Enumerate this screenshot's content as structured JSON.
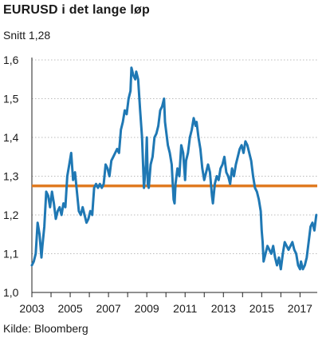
{
  "chart_data": {
    "type": "line",
    "title": "EURUSD i det lange løp",
    "subtitle": "Snitt 1,28",
    "source": "Kilde: Bloomberg",
    "xlabel": "",
    "ylabel": "",
    "xlim": [
      2003.0,
      2017.9
    ],
    "ylim": [
      1.0,
      1.6
    ],
    "grid": "horizontal",
    "legend": "none",
    "x_ticks": [
      "2003",
      "2005",
      "2007",
      "2009",
      "2011",
      "2013",
      "2015",
      "2017"
    ],
    "y_ticks": [
      "1,6",
      "1,5",
      "1,4",
      "1,3",
      "1,2",
      "1,1",
      "1,0"
    ],
    "colors": {
      "series": "#1f78b4",
      "average": "#e07b22",
      "grid": "#bbbbbb",
      "axis": "#222222"
    },
    "average": {
      "value": 1.275,
      "label": "Snitt 1,28"
    },
    "series": [
      {
        "x": [
          2003.0,
          2003.1,
          2003.2,
          2003.3,
          2003.4,
          2003.5,
          2003.55,
          2003.65,
          2003.75,
          2003.85,
          2003.95,
          2004.05,
          2004.15,
          2004.25,
          2004.35,
          2004.45,
          2004.55,
          2004.65,
          2004.75,
          2004.85,
          2004.95,
          2005.05,
          2005.15,
          2005.25,
          2005.35,
          2005.45,
          2005.55,
          2005.65,
          2005.75,
          2005.85,
          2005.95,
          2006.05,
          2006.15,
          2006.25,
          2006.35,
          2006.45,
          2006.55,
          2006.65,
          2006.75,
          2006.85,
          2006.95,
          2007.05,
          2007.15,
          2007.25,
          2007.35,
          2007.45,
          2007.55,
          2007.65,
          2007.75,
          2007.85,
          2007.95,
          2008.05,
          2008.15,
          2008.2,
          2008.3,
          2008.4,
          2008.45,
          2008.55,
          2008.65,
          2008.75,
          2008.85,
          2008.95,
          2009.0,
          2009.05,
          2009.1,
          2009.15,
          2009.2,
          2009.3,
          2009.4,
          2009.5,
          2009.6,
          2009.7,
          2009.8,
          2009.9,
          2009.95,
          2010.0,
          2010.1,
          2010.2,
          2010.3,
          2010.4,
          2010.45,
          2010.5,
          2010.6,
          2010.7,
          2010.8,
          2010.9,
          2011.0,
          2011.05,
          2011.15,
          2011.25,
          2011.35,
          2011.45,
          2011.55,
          2011.6,
          2011.7,
          2011.8,
          2011.9,
          2012.0,
          2012.1,
          2012.2,
          2012.3,
          2012.4,
          2012.45,
          2012.55,
          2012.65,
          2012.75,
          2012.85,
          2012.95,
          2013.05,
          2013.15,
          2013.25,
          2013.35,
          2013.45,
          2013.55,
          2013.65,
          2013.75,
          2013.85,
          2013.95,
          2014.05,
          2014.15,
          2014.25,
          2014.35,
          2014.45,
          2014.55,
          2014.65,
          2014.75,
          2014.85,
          2014.95,
          2015.0,
          2015.05,
          2015.1,
          2015.2,
          2015.3,
          2015.4,
          2015.5,
          2015.6,
          2015.7,
          2015.8,
          2015.9,
          2016.0,
          2016.1,
          2016.2,
          2016.3,
          2016.4,
          2016.5,
          2016.6,
          2016.7,
          2016.8,
          2016.9,
          2017.0,
          2017.05,
          2017.15,
          2017.25,
          2017.35,
          2017.45,
          2017.55,
          2017.65,
          2017.75,
          2017.85
        ],
        "y": [
          1.07,
          1.08,
          1.1,
          1.18,
          1.15,
          1.09,
          1.12,
          1.17,
          1.26,
          1.25,
          1.22,
          1.26,
          1.23,
          1.19,
          1.21,
          1.22,
          1.2,
          1.23,
          1.22,
          1.3,
          1.33,
          1.36,
          1.29,
          1.31,
          1.26,
          1.21,
          1.2,
          1.22,
          1.2,
          1.18,
          1.19,
          1.21,
          1.2,
          1.27,
          1.28,
          1.27,
          1.28,
          1.27,
          1.28,
          1.33,
          1.32,
          1.3,
          1.34,
          1.35,
          1.36,
          1.37,
          1.36,
          1.42,
          1.44,
          1.47,
          1.46,
          1.5,
          1.52,
          1.58,
          1.56,
          1.55,
          1.57,
          1.55,
          1.47,
          1.4,
          1.27,
          1.33,
          1.4,
          1.28,
          1.27,
          1.3,
          1.33,
          1.35,
          1.4,
          1.41,
          1.43,
          1.47,
          1.48,
          1.5,
          1.44,
          1.42,
          1.38,
          1.36,
          1.33,
          1.24,
          1.23,
          1.28,
          1.32,
          1.3,
          1.38,
          1.36,
          1.29,
          1.34,
          1.36,
          1.4,
          1.42,
          1.45,
          1.43,
          1.44,
          1.4,
          1.37,
          1.32,
          1.29,
          1.31,
          1.33,
          1.31,
          1.25,
          1.23,
          1.28,
          1.3,
          1.29,
          1.32,
          1.33,
          1.35,
          1.31,
          1.3,
          1.28,
          1.32,
          1.3,
          1.33,
          1.35,
          1.37,
          1.38,
          1.36,
          1.39,
          1.38,
          1.36,
          1.34,
          1.3,
          1.27,
          1.26,
          1.24,
          1.21,
          1.16,
          1.13,
          1.08,
          1.1,
          1.12,
          1.11,
          1.1,
          1.12,
          1.09,
          1.07,
          1.09,
          1.06,
          1.1,
          1.13,
          1.12,
          1.11,
          1.12,
          1.13,
          1.11,
          1.1,
          1.07,
          1.06,
          1.08,
          1.06,
          1.07,
          1.09,
          1.13,
          1.17,
          1.18,
          1.16,
          1.2
        ]
      }
    ]
  }
}
